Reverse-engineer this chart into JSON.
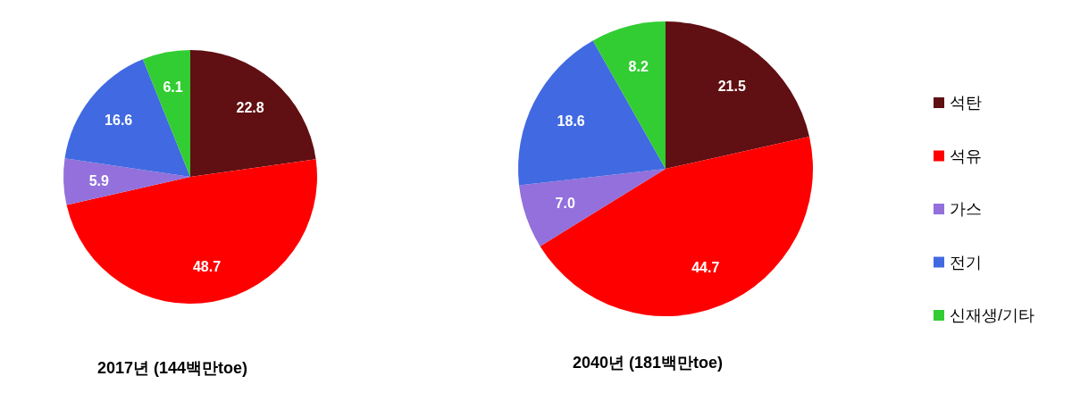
{
  "chart_data": [
    {
      "type": "pie",
      "title": "2017년 (144백만toe)",
      "categories": [
        null,
        null,
        null,
        null,
        null
      ],
      "values": [
        22.8,
        48.7,
        5.9,
        16.6,
        6.1
      ],
      "value_labels": [
        "22.8",
        "48.7",
        "5.9",
        "16.6",
        "6.1"
      ],
      "colors": [
        "#600f12",
        "#ff0000",
        "#9370db",
        "#4169e1",
        "#32cd32"
      ]
    },
    {
      "type": "pie",
      "title": "2040년 (181백만toe)",
      "categories": [
        "석탄",
        "석유",
        "가스",
        "전기",
        "신재생/기타"
      ],
      "values": [
        21.5,
        44.7,
        7.0,
        18.6,
        8.2
      ],
      "value_labels": [
        "21.5",
        "44.7",
        "7.0",
        "18.6",
        "8.2"
      ],
      "colors": [
        "#600f12",
        "#ff0000",
        "#9370db",
        "#4169e1",
        "#32cd32"
      ],
      "legend": "right"
    }
  ]
}
